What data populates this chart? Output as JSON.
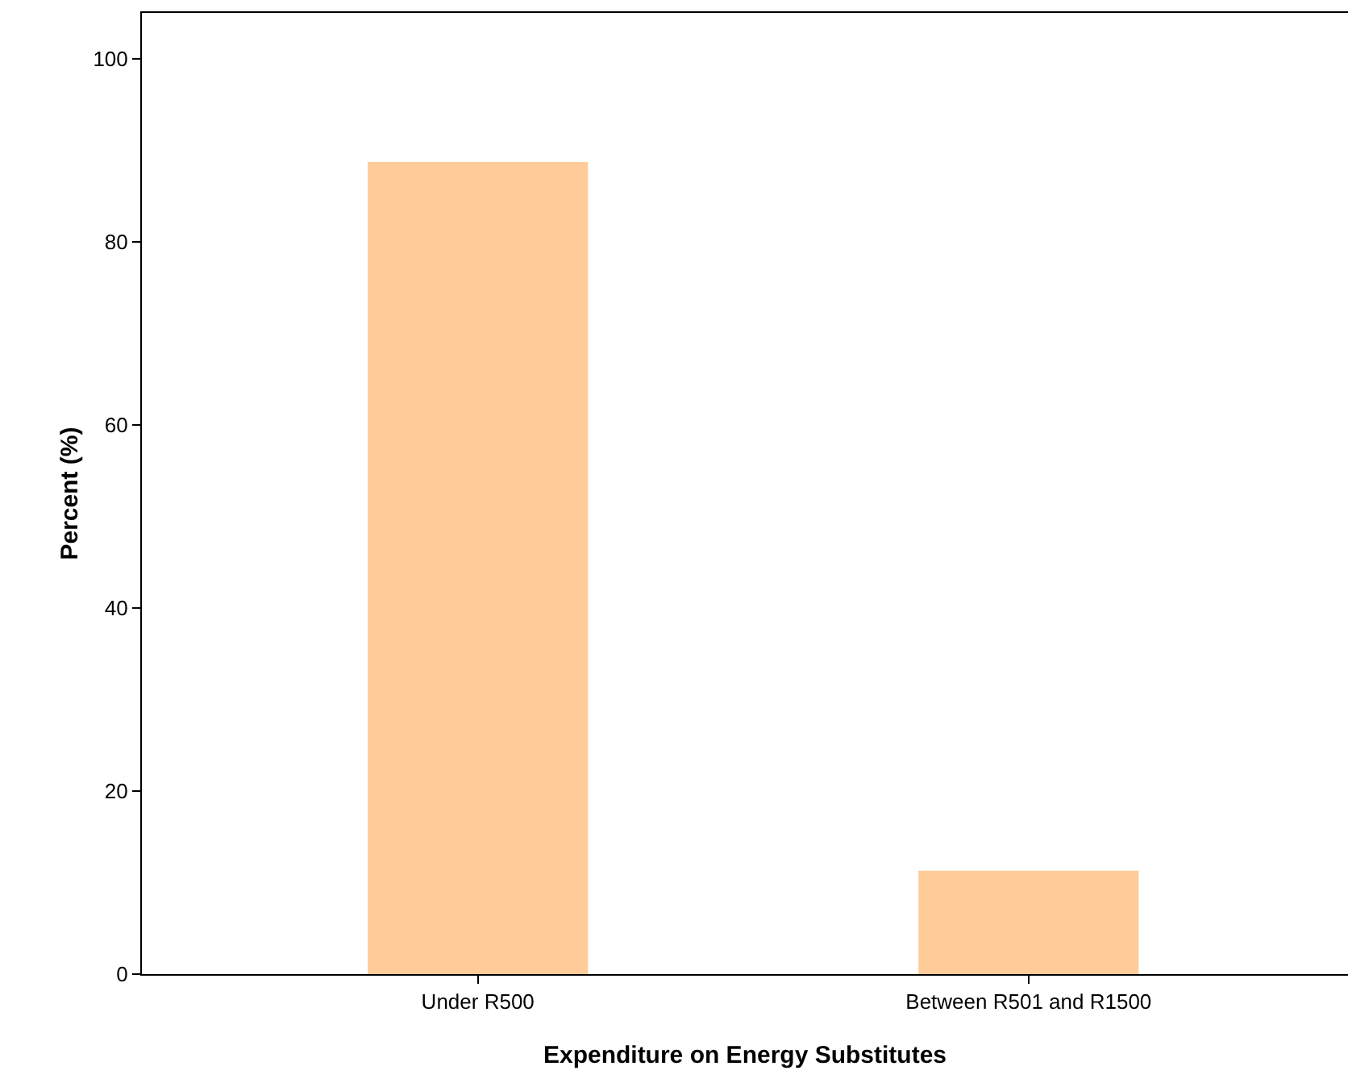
{
  "chart_data": {
    "type": "bar",
    "xlabel": "Expenditure on Energy Substitutes",
    "ylabel": "Percent (%)",
    "categories": [
      "Under R500",
      "Between R501 and R1500"
    ],
    "values": [
      88.7,
      11.3
    ],
    "color": "#ffcc99",
    "ylim": [
      0,
      105
    ],
    "yticks": [
      0,
      20,
      40,
      60,
      80,
      100
    ],
    "grid": false,
    "legend": false
  }
}
